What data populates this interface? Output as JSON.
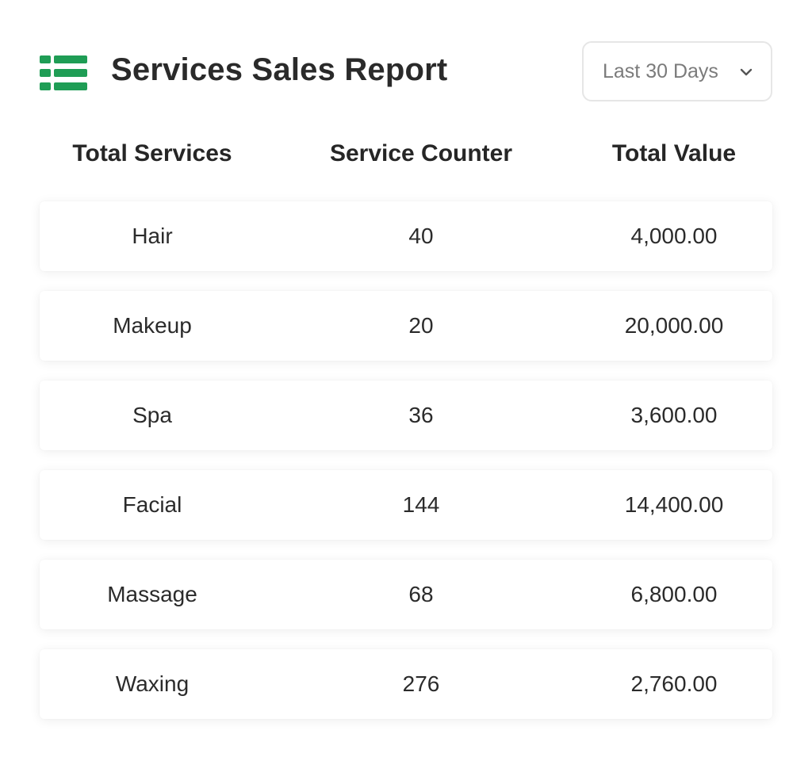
{
  "header": {
    "title": "Services Sales Report",
    "icon": "list-icon",
    "accent_color": "#1f9d55"
  },
  "range_select": {
    "selected": "Last 30 Days",
    "icon": "chevron-down-icon"
  },
  "table": {
    "columns": [
      "Total Services",
      "Service Counter",
      "Total Value"
    ],
    "rows": [
      {
        "service": "Hair",
        "counter": "40",
        "value": "4,000.00"
      },
      {
        "service": "Makeup",
        "counter": "20",
        "value": "20,000.00"
      },
      {
        "service": "Spa",
        "counter": "36",
        "value": "3,600.00"
      },
      {
        "service": "Facial",
        "counter": "144",
        "value": "14,400.00"
      },
      {
        "service": "Massage",
        "counter": "68",
        "value": "6,800.00"
      },
      {
        "service": "Waxing",
        "counter": "276",
        "value": "2,760.00"
      }
    ]
  }
}
